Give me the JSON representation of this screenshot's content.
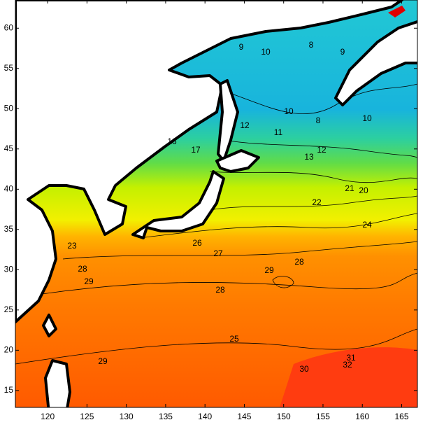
{
  "map": {
    "type": "contour",
    "xlim": [
      115.9,
      167
    ],
    "xticks": [
      120,
      125,
      130,
      135,
      140,
      145,
      150,
      155,
      160,
      165
    ],
    "ylim": [
      12.9,
      63.5
    ],
    "yticks": [
      60,
      55,
      50,
      45,
      40,
      35,
      30,
      25,
      20,
      15
    ],
    "contour_labels": [
      9,
      10,
      8,
      9,
      10,
      11,
      8,
      10,
      12,
      16,
      17,
      13,
      12,
      21,
      20,
      22,
      24,
      23,
      26,
      27,
      29,
      28,
      28,
      29,
      28,
      29,
      30,
      31,
      32,
      25
    ]
  }
}
